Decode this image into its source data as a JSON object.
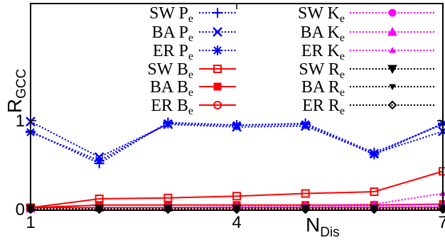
{
  "chart_data": {
    "type": "line",
    "ylabel": "R",
    "ylabel_sub": "GCC",
    "xlabel": "N",
    "xlabel_sub": "Dis",
    "x": [
      1,
      2,
      3,
      4,
      5,
      6,
      7
    ],
    "xticks": [
      1,
      4,
      7
    ],
    "xtick_labels": [
      "1",
      "4",
      "7"
    ],
    "yticks": [
      0,
      1
    ],
    "ytick_labels": [
      "0",
      "1"
    ],
    "xlim": [
      1,
      7
    ],
    "ylim": [
      0,
      2.3
    ],
    "grid": false,
    "legend": "top",
    "series": [
      {
        "name": "SW P",
        "sub": "e",
        "color": "#0000ff",
        "dash": "dotted",
        "marker": "plus",
        "values": [
          0.88,
          0.52,
          0.98,
          0.95,
          0.97,
          0.64,
          0.96
        ]
      },
      {
        "name": "BA P",
        "sub": "e",
        "color": "#0000ff",
        "dash": "dotted",
        "marker": "x",
        "values": [
          0.99,
          0.59,
          0.96,
          0.93,
          0.94,
          0.63,
          0.88
        ]
      },
      {
        "name": "ER P",
        "sub": "e",
        "color": "#0000ff",
        "dash": "dotted",
        "marker": "star",
        "values": [
          0.87,
          0.55,
          0.97,
          0.95,
          0.96,
          0.62,
          0.97
        ]
      },
      {
        "name": "SW B",
        "sub": "e",
        "color": "#ff0000",
        "dash": "solid",
        "marker": "square-open",
        "values": [
          0.02,
          0.12,
          0.13,
          0.15,
          0.18,
          0.2,
          0.43
        ]
      },
      {
        "name": "BA B",
        "sub": "e",
        "color": "#ff0000",
        "dash": "solid",
        "marker": "square-filled",
        "values": [
          0.02,
          0.05,
          0.05,
          0.05,
          0.05,
          0.05,
          0.06
        ]
      },
      {
        "name": "ER B",
        "sub": "e",
        "color": "#ff0000",
        "dash": "solid",
        "marker": "circle-open",
        "values": [
          0.02,
          0.02,
          0.02,
          0.02,
          0.02,
          0.02,
          0.02
        ]
      },
      {
        "name": "SW K",
        "sub": "e",
        "color": "#ff00ff",
        "dash": "dotted",
        "marker": "circle-filled",
        "values": [
          0.01,
          0.01,
          0.02,
          0.02,
          0.03,
          0.03,
          0.03
        ]
      },
      {
        "name": "BA K",
        "sub": "e",
        "color": "#ff00ff",
        "dash": "dotted",
        "marker": "triangle-up",
        "values": [
          0.01,
          0.02,
          0.02,
          0.03,
          0.04,
          0.05,
          0.06
        ]
      },
      {
        "name": "ER K",
        "sub": "e",
        "color": "#ff00ff",
        "dash": "dotted",
        "marker": "triangle-small",
        "values": [
          0.01,
          0.01,
          0.02,
          0.03,
          0.04,
          0.06,
          0.18
        ]
      },
      {
        "name": "SW R",
        "sub": "e",
        "color": "#000000",
        "dash": "dotted",
        "marker": "triangle-down",
        "values": [
          0.01,
          0.01,
          0.01,
          0.01,
          0.01,
          0.01,
          0.01
        ]
      },
      {
        "name": "BA R",
        "sub": "e",
        "color": "#000000",
        "dash": "dotted",
        "marker": "triangle-down-small",
        "values": [
          0.005,
          0.005,
          0.005,
          0.005,
          0.005,
          0.005,
          0.005
        ]
      },
      {
        "name": "ER R",
        "sub": "e",
        "color": "#000000",
        "dash": "dotted",
        "marker": "diamond-open",
        "values": [
          0.0,
          0.0,
          0.0,
          0.0,
          0.0,
          0.0,
          0.0
        ]
      }
    ]
  }
}
